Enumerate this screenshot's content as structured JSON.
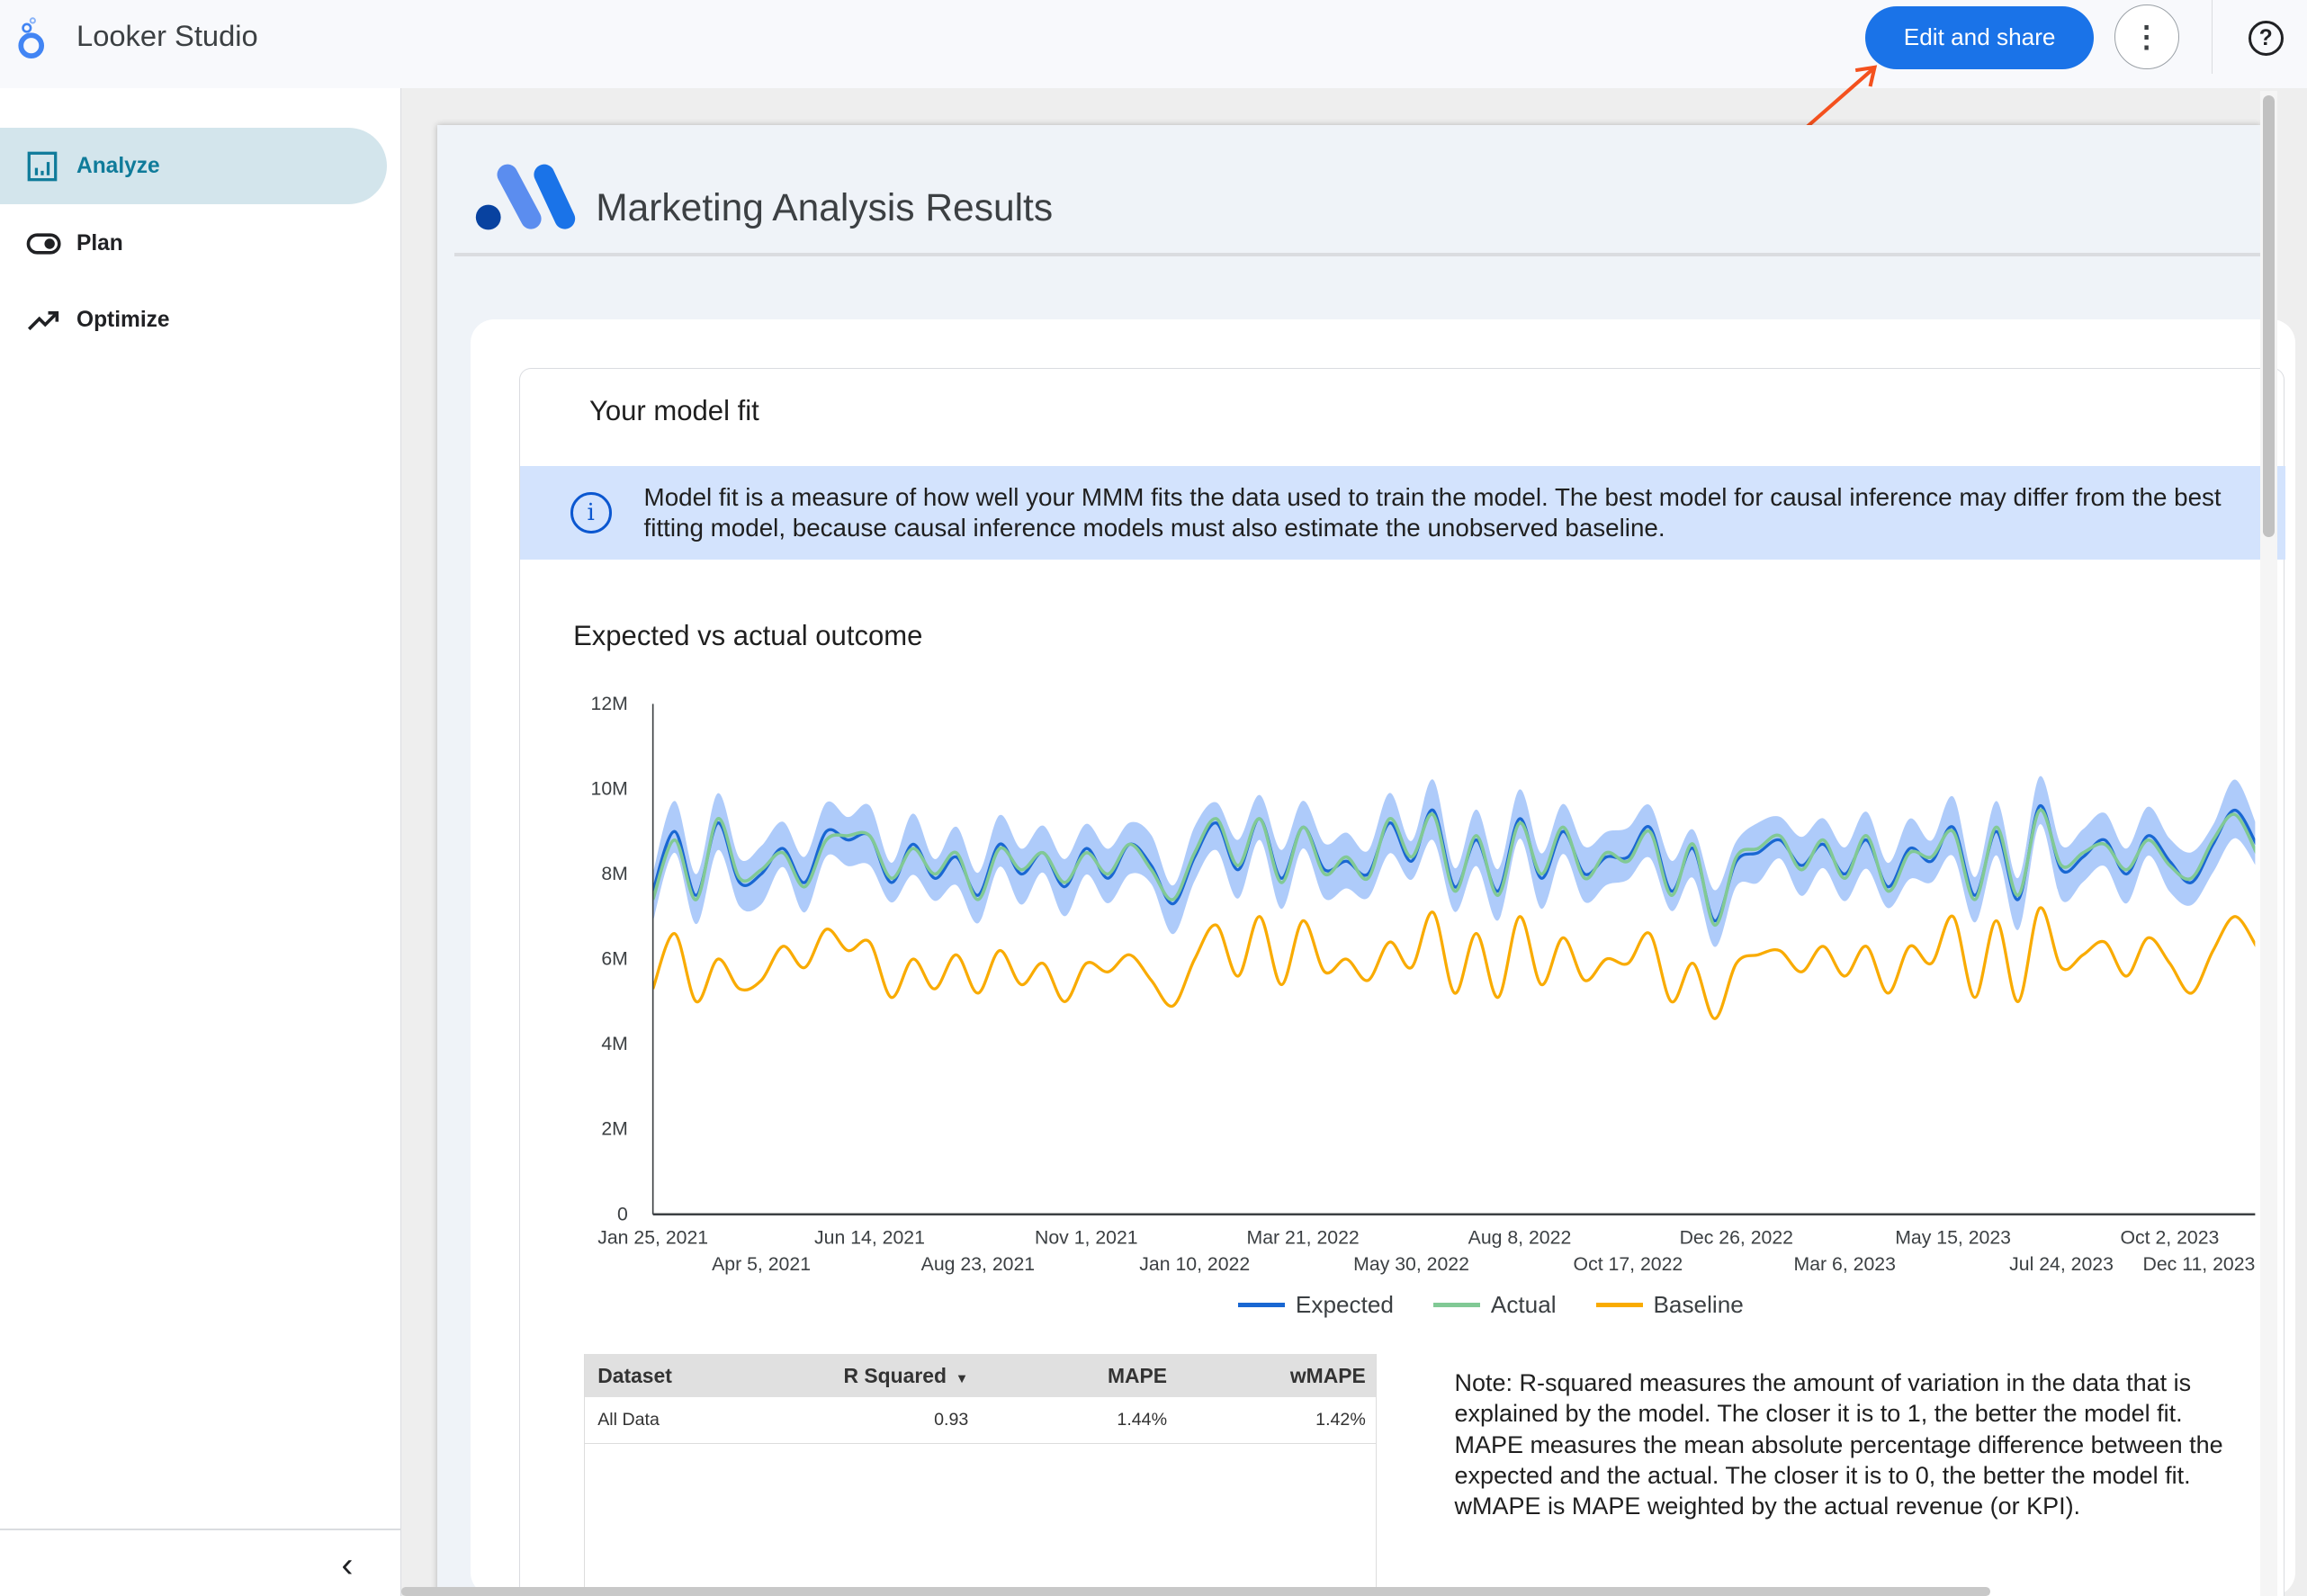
{
  "app": {
    "title": "Looker Studio",
    "edit_share": "Edit and share",
    "more_icon": "more-vert-icon",
    "help_icon": "help-icon"
  },
  "sidebar": {
    "items": [
      {
        "label": "Analyze",
        "icon": "bar-chart-icon",
        "active": true
      },
      {
        "label": "Plan",
        "icon": "toggle-icon"
      },
      {
        "label": "Optimize",
        "icon": "trending-up-icon"
      }
    ],
    "collapse_icon": "chevron-left-icon"
  },
  "report": {
    "title": "Marketing Analysis Results",
    "section_title": "Your model fit",
    "info": "Model fit is a measure of how well your MMM fits the data used to train the model. The best model for causal inference may differ from the best fitting model, because causal inference models must also estimate the unobserved baseline.",
    "chart_title": "Expected vs actual outcome",
    "note": "Note: R-squared measures the amount of variation in the data that is explained by the model. The closer it is to 1, the better the model fit. MAPE measures the mean absolute percentage difference between the expected and the actual. The closer it is to 0, the better the model fit. wMAPE is MAPE weighted by the actual revenue (or KPI).",
    "table": {
      "headers": [
        "Dataset",
        "R Squared",
        "MAPE",
        "wMAPE"
      ],
      "sort_indicator": "▼",
      "rows": [
        [
          "All Data",
          "0.93",
          "1.44%",
          "1.42%"
        ]
      ]
    }
  },
  "colors": {
    "expected": "#1967d2",
    "actual": "#81c995",
    "baseline": "#f9ab00",
    "interval": "#aecbfa",
    "button": "#1a73e8",
    "active_nav": "#0f7b9a"
  },
  "chart_data": {
    "type": "line",
    "title": "Expected vs actual outcome",
    "ylim": [
      0,
      12
    ],
    "y_ticks": [
      "0",
      "2M",
      "4M",
      "6M",
      "8M",
      "10M",
      "12M"
    ],
    "x_ticks": [
      "Jan 25, 2021",
      "Apr 5, 2021",
      "Jun 14, 2021",
      "Aug 23, 2021",
      "Nov 1, 2021",
      "Jan 10, 2022",
      "Mar 21, 2022",
      "May 30, 2022",
      "Aug 8, 2022",
      "Oct 17, 2022",
      "Dec 26, 2022",
      "Mar 6, 2023",
      "May 15, 2023",
      "Jul 24, 2023",
      "Oct 2, 2023",
      "Dec 11, 2023"
    ],
    "x_tick_dates": [
      "2021-01-25",
      "2021-04-05",
      "2021-06-14",
      "2021-08-23",
      "2021-11-01",
      "2022-01-10",
      "2022-03-21",
      "2022-05-30",
      "2022-08-08",
      "2022-10-17",
      "2022-12-26",
      "2023-03-06",
      "2023-05-15",
      "2023-07-24",
      "2023-10-02",
      "2023-12-11"
    ],
    "legend": "bottom",
    "unit": "millions",
    "x": [
      "2021-01-25",
      "2021-02-08",
      "2021-02-22",
      "2021-03-08",
      "2021-03-22",
      "2021-04-05",
      "2021-04-19",
      "2021-05-03",
      "2021-05-17",
      "2021-05-31",
      "2021-06-14",
      "2021-06-28",
      "2021-07-12",
      "2021-07-26",
      "2021-08-09",
      "2021-08-23",
      "2021-09-06",
      "2021-09-20",
      "2021-10-04",
      "2021-10-18",
      "2021-11-01",
      "2021-11-15",
      "2021-11-29",
      "2021-12-13",
      "2021-12-27",
      "2022-01-10",
      "2022-01-24",
      "2022-02-07",
      "2022-02-21",
      "2022-03-07",
      "2022-03-21",
      "2022-04-04",
      "2022-04-18",
      "2022-05-02",
      "2022-05-16",
      "2022-05-30",
      "2022-06-13",
      "2022-06-27",
      "2022-07-11",
      "2022-07-25",
      "2022-08-08",
      "2022-08-22",
      "2022-09-05",
      "2022-09-19",
      "2022-10-03",
      "2022-10-17",
      "2022-10-31",
      "2022-11-14",
      "2022-11-28",
      "2022-12-12",
      "2022-12-26",
      "2023-01-09",
      "2023-01-23",
      "2023-02-06",
      "2023-02-20",
      "2023-03-06",
      "2023-03-20",
      "2023-04-03",
      "2023-04-17",
      "2023-05-01",
      "2023-05-15",
      "2023-05-29",
      "2023-06-12",
      "2023-06-26",
      "2023-07-10",
      "2023-07-24",
      "2023-08-07",
      "2023-08-21",
      "2023-09-04",
      "2023-09-18",
      "2023-10-02",
      "2023-10-16",
      "2023-10-30",
      "2023-11-13",
      "2023-11-27"
    ],
    "interval_halfwidth": 0.6,
    "series": [
      {
        "name": "Expected",
        "values": [
          7.6,
          9.0,
          7.5,
          9.2,
          7.8,
          8.0,
          8.6,
          7.8,
          9.0,
          8.8,
          8.9,
          7.8,
          8.7,
          7.9,
          8.4,
          7.5,
          8.7,
          8.0,
          8.5,
          7.7,
          8.6,
          7.9,
          8.7,
          8.2,
          7.3,
          8.4,
          9.2,
          8.1,
          9.3,
          7.9,
          9.1,
          8.1,
          8.3,
          8.0,
          9.2,
          8.3,
          9.5,
          7.7,
          8.8,
          7.6,
          9.3,
          7.9,
          9.0,
          8.0,
          8.4,
          8.4,
          9.1,
          7.6,
          8.6,
          6.9,
          8.3,
          8.5,
          8.8,
          8.2,
          8.7,
          8.0,
          8.8,
          7.7,
          8.6,
          8.3,
          9.1,
          7.5,
          9.0,
          7.4,
          9.6,
          8.1,
          8.4,
          8.8,
          8.0,
          8.9,
          8.3,
          7.8,
          8.7,
          9.5,
          8.7
        ]
      },
      {
        "name": "Actual",
        "values": [
          7.4,
          8.8,
          7.4,
          9.3,
          7.9,
          8.1,
          8.5,
          7.7,
          8.8,
          8.9,
          8.9,
          7.9,
          8.6,
          8.0,
          8.5,
          7.4,
          8.6,
          8.1,
          8.5,
          7.8,
          8.5,
          8.0,
          8.7,
          8.1,
          7.4,
          8.5,
          9.3,
          8.2,
          9.3,
          7.8,
          9.1,
          8.0,
          8.4,
          7.9,
          9.3,
          8.4,
          9.4,
          7.6,
          8.9,
          7.5,
          9.2,
          8.0,
          9.1,
          7.9,
          8.5,
          8.3,
          9.0,
          7.5,
          8.7,
          6.8,
          8.4,
          8.6,
          8.9,
          8.1,
          8.8,
          7.9,
          8.9,
          7.6,
          8.5,
          8.4,
          9.0,
          7.4,
          9.1,
          7.5,
          9.5,
          8.2,
          8.5,
          8.7,
          8.1,
          8.8,
          8.2,
          7.9,
          8.8,
          9.4,
          8.5
        ]
      },
      {
        "name": "Baseline",
        "values": [
          5.3,
          6.6,
          5.0,
          6.0,
          5.3,
          5.5,
          6.3,
          5.8,
          6.7,
          6.2,
          6.4,
          5.1,
          6.0,
          5.3,
          6.1,
          5.2,
          6.2,
          5.4,
          5.9,
          5.0,
          5.9,
          5.7,
          6.1,
          5.5,
          4.9,
          6.0,
          6.8,
          5.6,
          7.0,
          5.4,
          6.9,
          5.7,
          6.0,
          5.5,
          6.4,
          5.8,
          7.1,
          5.2,
          6.6,
          5.1,
          7.0,
          5.4,
          6.5,
          5.5,
          6.0,
          5.9,
          6.6,
          5.0,
          5.9,
          4.6,
          5.9,
          6.1,
          6.2,
          5.7,
          6.3,
          5.6,
          6.3,
          5.2,
          6.3,
          5.9,
          7.0,
          5.1,
          6.9,
          5.0,
          7.2,
          5.8,
          6.1,
          6.4,
          5.6,
          6.5,
          5.9,
          5.2,
          6.2,
          7.0,
          6.3
        ]
      }
    ]
  }
}
